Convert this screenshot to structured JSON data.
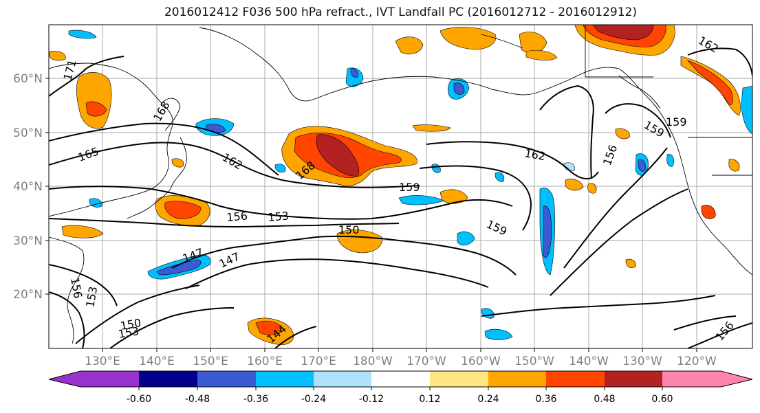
{
  "title": "2016012412 F036 500 hPa refract., IVT Landfall PC (2016012712 - 2016012912)",
  "lat_labels": [
    "60°N",
    "50°N",
    "40°N",
    "30°N",
    "20°N"
  ],
  "lon_labels": [
    "130°E",
    "140°E",
    "150°E",
    "160°E",
    "170°E",
    "180°W",
    "170°W",
    "160°W",
    "150°W",
    "140°W",
    "130°W",
    "120°W"
  ],
  "contour_labels": [
    "171",
    "168",
    "165",
    "162",
    "168",
    "159",
    "162",
    "156",
    "153",
    "150",
    "159",
    "147",
    "147",
    "156",
    "153",
    "150",
    "153",
    "144",
    "159",
    "156",
    "159",
    "162",
    "156"
  ],
  "colorbar": {
    "tick_labels": [
      "-0.60",
      "-0.48",
      "-0.36",
      "-0.24",
      "-0.12",
      "0.12",
      "0.24",
      "0.36",
      "0.48",
      "0.60"
    ],
    "colors": [
      "#9932CC",
      "#00008B",
      "#3A5BD1",
      "#00BFFF",
      "#B0E2FF",
      "#FFFFFF",
      "#FFE680",
      "#FFA500",
      "#FF4500",
      "#B22222",
      "#FF85AD"
    ]
  }
}
